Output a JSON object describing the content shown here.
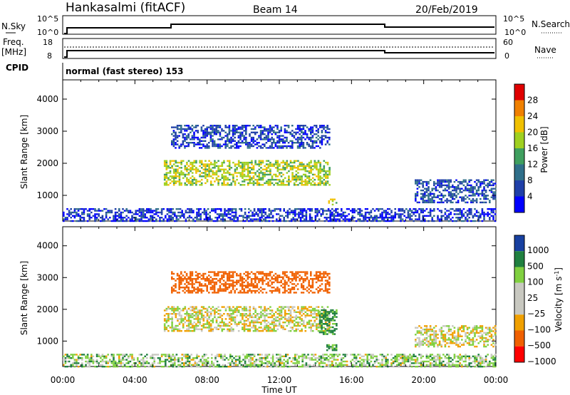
{
  "header": {
    "station": "Hankasalmi (fitACF)",
    "beam": "Beam 14",
    "date": "20/Feb/2019"
  },
  "sky_panel": {
    "left_label": "N.Sky",
    "right_label": "N.Search",
    "left_ticks": [
      "10^5",
      "10^0"
    ],
    "right_ticks": [
      "10^5",
      "10^0"
    ]
  },
  "freq_panel": {
    "left_label_1": "Freq.",
    "left_label_2": "[MHz]",
    "right_label": "Nave",
    "left_ticks": [
      "18",
      "8"
    ],
    "right_ticks": [
      "60",
      "0"
    ]
  },
  "cpid": {
    "label": "CPID",
    "value": "normal (fast stereo) 153"
  },
  "colors": {
    "power": [
      "#0000ff",
      "#1f3fa8",
      "#2f6f8a",
      "#3f9f5f",
      "#9fd020",
      "#f0c000",
      "#f08000",
      "#e00000"
    ],
    "velocity": [
      "#ff0000",
      "#f06000",
      "#f0a000",
      "#c8c8c0",
      "#c8c8c0",
      "#80d040",
      "#208040",
      "#1840a0"
    ]
  },
  "chart_data": [
    {
      "type": "heatmap",
      "title": "Power",
      "xlabel": "",
      "ylabel": "Slant Range [km]",
      "xlim": [
        "00:00",
        "00:00"
      ],
      "ylim": [
        200,
        4600
      ],
      "x_ticks": [
        "00:00",
        "04:00",
        "08:00",
        "12:00",
        "16:00",
        "20:00",
        "00:00"
      ],
      "y_ticks": [
        1000,
        2000,
        3000,
        4000
      ],
      "colorbar": {
        "label": "Power [dB]",
        "ticks": [
          4,
          8,
          12,
          16,
          20,
          24,
          28
        ],
        "range": [
          0,
          32
        ]
      },
      "regions": [
        {
          "t0": 6.0,
          "t1": 14.8,
          "r0": 2500,
          "r1": 3200,
          "level": 6
        },
        {
          "t0": 5.6,
          "t1": 14.8,
          "r0": 1300,
          "r1": 2100,
          "level": 18
        },
        {
          "t0": 14.6,
          "t1": 15.2,
          "r0": 700,
          "r1": 900,
          "level": 20
        },
        {
          "t0": 19.5,
          "t1": 24.0,
          "r0": 800,
          "r1": 1500,
          "level": 7
        },
        {
          "t0": 0.0,
          "t1": 24.0,
          "r0": 200,
          "r1": 600,
          "level": 5
        }
      ]
    },
    {
      "type": "heatmap",
      "title": "Velocity",
      "xlabel": "Time UT",
      "ylabel": "Slant Range [km]",
      "xlim": [
        "00:00",
        "00:00"
      ],
      "ylim": [
        200,
        4600
      ],
      "x_ticks": [
        "00:00",
        "04:00",
        "08:00",
        "12:00",
        "16:00",
        "20:00",
        "00:00"
      ],
      "y_ticks": [
        1000,
        2000,
        3000,
        4000
      ],
      "colorbar": {
        "label": "Velocity [m s-1]",
        "label_main": "Velocity [m s",
        "label_sup": "-1",
        "label_end": "]",
        "ticks": [
          "1000",
          "500",
          "100",
          "25",
          "−25",
          "−100",
          "−500",
          "−1000"
        ]
      },
      "regions": [
        {
          "t0": 6.0,
          "t1": 14.8,
          "r0": 2500,
          "r1": 3200,
          "velocity": -300
        },
        {
          "t0": 5.6,
          "t1": 14.8,
          "r0": 1300,
          "r1": 2100,
          "velocity": 0
        },
        {
          "t0": 14.2,
          "t1": 15.2,
          "r0": 1200,
          "r1": 2000,
          "velocity": 150
        },
        {
          "t0": 14.6,
          "t1": 15.2,
          "r0": 700,
          "r1": 900,
          "velocity": 100
        },
        {
          "t0": 19.5,
          "t1": 24.0,
          "r0": 800,
          "r1": 1500,
          "velocity": 0
        },
        {
          "t0": 0.0,
          "t1": 24.0,
          "r0": 200,
          "r1": 600,
          "velocity": 50
        }
      ]
    }
  ]
}
